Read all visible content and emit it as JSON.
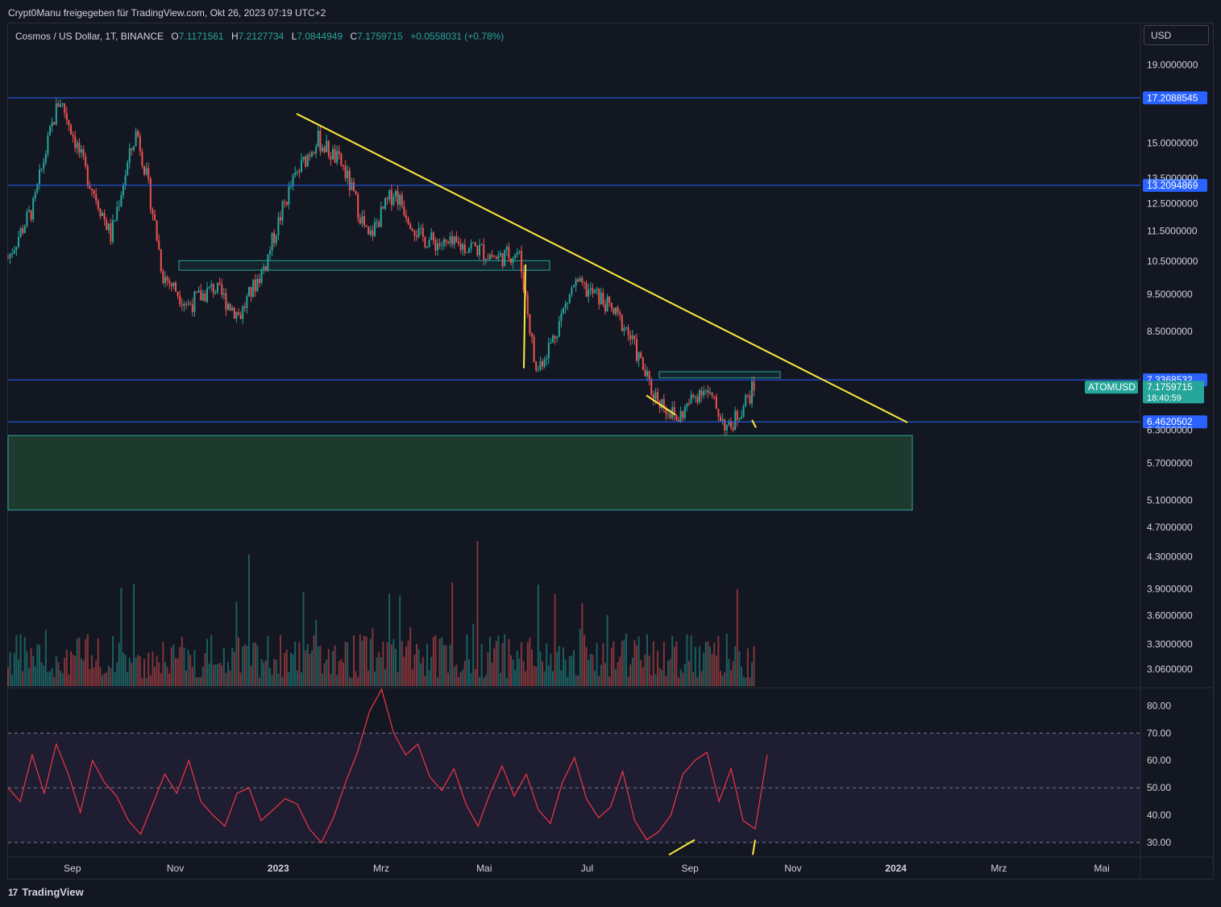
{
  "header": {
    "attribution": "Crypt0Manu freigegeben für TradingView.com, Okt 26, 2023 07:19 UTC+2"
  },
  "legend": {
    "symbol": "Cosmos / US Dollar, 1T, BINANCE",
    "open_label": "O",
    "open": "7.1171561",
    "high_label": "H",
    "high": "7.2127734",
    "low_label": "L",
    "low": "7.0844949",
    "close_label": "C",
    "close": "7.1759715",
    "change": "+0.0558031 (+0.78%)"
  },
  "currency_button": "USD",
  "footer": {
    "brand": "TradingView"
  },
  "colors": {
    "background": "#131722",
    "up": "#26a69a",
    "down": "#ef5350",
    "level_line": "#2962ff",
    "trendline": "#ffeb3b",
    "zone": "#1e3a2f",
    "rsi": "#f23645"
  },
  "chart_data": [
    {
      "type": "candlestick",
      "symbol": "ATOMUSD",
      "scale": "log",
      "x_axis": {
        "tick_labels": [
          "Sep",
          "Nov",
          "2023",
          "Mrz",
          "Mai",
          "Jul",
          "Sep",
          "Nov",
          "2024",
          "Mrz",
          "Mai"
        ]
      },
      "y_axis": {
        "tick_labels": [
          "19.0000000",
          "15.0000000",
          "13.5000000",
          "12.5000000",
          "11.5000000",
          "10.5000000",
          "9.5000000",
          "8.5000000",
          "6.3000000",
          "5.7000000",
          "5.1000000",
          "4.7000000",
          "4.3000000",
          "3.9000000",
          "3.6000000",
          "3.3000000",
          "3.0600000"
        ],
        "range": [
          2.9,
          21.5
        ]
      },
      "horizontal_levels": [
        "17.2088545",
        "13.2094869",
        "7.3368532",
        "6.4620502"
      ],
      "last_price": {
        "label": "ATOMUSD",
        "value": "7.1759715",
        "countdown": "18:40:59"
      },
      "zones": [
        {
          "from": 10.22,
          "to": 10.52
        },
        {
          "from": 7.38,
          "to": 7.52
        },
        {
          "from": 4.95,
          "to": 6.2
        }
      ],
      "trendline": {
        "from": [
          "Jan 2023",
          16.4
        ],
        "to": [
          "Dez 2023",
          6.45
        ]
      },
      "price_path": [
        [
          "Aug 2022",
          10.6
        ],
        [
          "Aug 2022",
          12.4
        ],
        [
          "Sep 2022",
          17.2
        ],
        [
          "Sep 2022",
          13.8
        ],
        [
          "Okt 2022",
          11.3
        ],
        [
          "Okt 2022",
          15.6
        ],
        [
          "Nov 2022",
          10.1
        ],
        [
          "Nov 2022",
          9.2
        ],
        [
          "Dez 2022",
          9.7
        ],
        [
          "Dez 2022",
          8.9
        ],
        [
          "Jan 2023",
          10.4
        ],
        [
          "Jan 2023",
          13.2
        ],
        [
          "Feb 2023",
          15.2
        ],
        [
          "Feb 2023",
          14.0
        ],
        [
          "Mrz 2023",
          11.2
        ],
        [
          "Mrz 2023",
          13.0
        ],
        [
          "Apr 2023",
          11.3
        ],
        [
          "Apr 2023",
          11.0
        ],
        [
          "Mai 2023",
          11.0
        ],
        [
          "Mai 2023",
          10.6
        ],
        [
          "Jun 2023",
          10.8
        ],
        [
          "Jun 2023",
          7.5
        ],
        [
          "Jun 2023",
          8.3
        ],
        [
          "Jul 2023",
          9.8
        ],
        [
          "Jul 2023",
          9.4
        ],
        [
          "Aug 2023",
          8.6
        ],
        [
          "Aug 2023",
          7.1
        ],
        [
          "Sep 2023",
          6.5
        ],
        [
          "Sep 2023",
          7.2
        ],
        [
          "Okt 2023",
          6.3
        ],
        [
          "Okt 2023",
          7.18
        ]
      ]
    },
    {
      "type": "line",
      "name": "RSI",
      "y_axis": {
        "tick_labels": [
          "80.00",
          "70.00",
          "60.00",
          "50.00",
          "40.00",
          "30.00"
        ],
        "range": [
          25,
          86
        ]
      },
      "bands": [
        30,
        50,
        70
      ],
      "values": [
        50,
        45,
        62,
        48,
        66,
        55,
        41,
        60,
        52,
        47,
        38,
        33,
        44,
        55,
        48,
        60,
        45,
        40,
        36,
        48,
        50,
        38,
        42,
        46,
        44,
        35,
        30,
        39,
        52,
        63,
        78,
        86,
        70,
        62,
        66,
        54,
        49,
        57,
        44,
        36,
        48,
        58,
        47,
        55,
        42,
        37,
        52,
        61,
        46,
        39,
        43,
        56,
        38,
        31,
        34,
        40,
        55,
        60,
        63,
        45,
        57,
        38,
        35,
        62
      ]
    }
  ]
}
